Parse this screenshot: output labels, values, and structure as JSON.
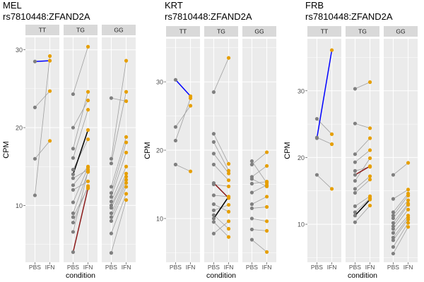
{
  "colors": {
    "panel_bg": "#ebebeb",
    "strip_bg": "#d9d9d9",
    "grid": "#ffffff",
    "pbs_point": "#808080",
    "ifn_point": "#e69f00",
    "line_default": "#a0a0a0",
    "highlight_blue": "#0000ff",
    "highlight_red": "#8b1a1a",
    "highlight_black": "#000000"
  },
  "chart_data": [
    {
      "type": "scatter",
      "title_line1": "MEL",
      "title_line2": "rs7810448:ZFAND2A",
      "ylabel": "CPM",
      "xlabel": "condition",
      "conditions": [
        "PBS",
        "IFN"
      ],
      "yticks": [
        10,
        20,
        30
      ],
      "ylim": [
        2.7,
        31.6
      ],
      "facets": [
        {
          "genotype": "TT",
          "pairs": [
            [
              28.5,
              28.6,
              "blue"
            ],
            [
              22.6,
              24.7
            ],
            [
              16.0,
              18.3
            ],
            [
              11.3,
              29.2
            ]
          ]
        },
        {
          "genotype": "TG",
          "pairs": [
            [
              24.3,
              30.4
            ],
            [
              20.0,
              23.5
            ],
            [
              17.3,
              24.6
            ],
            [
              16.1,
              22.3
            ],
            [
              14.6,
              18.5
            ],
            [
              14.0,
              19.7,
              "black"
            ],
            [
              13.5,
              14.6
            ],
            [
              12.6,
              15.0
            ],
            [
              12.0,
              13.1
            ],
            [
              10.4,
              14.9
            ],
            [
              9.0,
              14.3
            ],
            [
              8.5,
              12.3
            ],
            [
              7.8,
              12.5
            ],
            [
              6.6,
              14.4
            ],
            [
              4.0,
              12.2,
              "red"
            ]
          ]
        },
        {
          "genotype": "GG",
          "pairs": [
            [
              23.8,
              23.4
            ],
            [
              16.0,
              28.6
            ],
            [
              15.4,
              24.6
            ],
            [
              12.4,
              18.8
            ],
            [
              11.6,
              18.1
            ],
            [
              11.1,
              16.8
            ],
            [
              10.5,
              15.0
            ],
            [
              10.0,
              14.1
            ],
            [
              9.7,
              13.7
            ],
            [
              9.0,
              13.3
            ],
            [
              8.5,
              12.9
            ],
            [
              8.0,
              12.4
            ],
            [
              6.4,
              11.5
            ],
            [
              3.9,
              10.7
            ]
          ]
        }
      ]
    },
    {
      "type": "scatter",
      "title_line1": "KRT",
      "title_line2": "rs7810448:ZFAND2A",
      "ylabel": "CPM",
      "xlabel": "condition",
      "conditions": [
        "PBS",
        "IFN"
      ],
      "yticks": [
        10,
        20,
        30
      ],
      "ylim": [
        3.6,
        36.3
      ],
      "facets": [
        {
          "genotype": "TT",
          "pairs": [
            [
              30.3,
              27.9,
              "blue"
            ],
            [
              23.4,
              26.5
            ],
            [
              21.4,
              27.6
            ],
            [
              17.9,
              16.9
            ]
          ]
        },
        {
          "genotype": "TG",
          "pairs": [
            [
              28.5,
              33.5
            ],
            [
              22.4,
              18.0
            ],
            [
              21.2,
              17.0
            ],
            [
              19.5,
              16.6
            ],
            [
              17.9,
              15.6
            ],
            [
              15.2,
              13.0,
              "red"
            ],
            [
              15.0,
              14.7
            ],
            [
              13.4,
              13.2
            ],
            [
              12.1,
              11.0
            ],
            [
              11.2,
              12.0
            ],
            [
              10.5,
              8.5
            ],
            [
              10.0,
              13.2,
              "black"
            ],
            [
              9.5,
              7.3
            ],
            [
              7.8,
              9.6
            ]
          ]
        },
        {
          "genotype": "GG",
          "pairs": [
            [
              18.4,
              15.2
            ],
            [
              17.9,
              19.7
            ],
            [
              16.1,
              17.7
            ],
            [
              15.8,
              14.7
            ],
            [
              15.1,
              15.4
            ],
            [
              13.8,
              14.9
            ],
            [
              12.1,
              13.2
            ],
            [
              11.5,
              11.7
            ],
            [
              10.0,
              9.6
            ],
            [
              8.4,
              8.2
            ],
            [
              6.9,
              5.1
            ]
          ]
        }
      ]
    },
    {
      "type": "scatter",
      "title_line1": "FRB",
      "title_line2": "rs7810448:ZFAND2A",
      "ylabel": "CPM",
      "xlabel": "condition",
      "conditions": [
        "PBS",
        "IFN"
      ],
      "yticks": [
        10,
        20,
        30
      ],
      "ylim": [
        4.3,
        37.8
      ],
      "facets": [
        {
          "genotype": "TT",
          "pairs": [
            [
              25.8,
              23.5
            ],
            [
              23.0,
              22.0
            ],
            [
              22.9,
              36.1,
              "blue"
            ],
            [
              17.4,
              15.3
            ]
          ]
        },
        {
          "genotype": "TG",
          "pairs": [
            [
              30.3,
              31.3
            ],
            [
              25.1,
              24.4
            ],
            [
              20.5,
              22.9
            ],
            [
              19.3,
              21.1
            ],
            [
              18.0,
              18.6
            ],
            [
              17.4,
              18.7,
              "red"
            ],
            [
              16.5,
              19.9
            ],
            [
              15.3,
              17.2
            ],
            [
              14.7,
              16.7
            ],
            [
              12.7,
              14.2
            ],
            [
              11.8,
              13.9
            ],
            [
              11.3,
              13.7,
              "black"
            ],
            [
              10.3,
              12.8
            ]
          ]
        },
        {
          "genotype": "GG",
          "pairs": [
            [
              17.4,
              19.2
            ],
            [
              13.8,
              15.2
            ],
            [
              11.8,
              14.6
            ],
            [
              11.3,
              14.3
            ],
            [
              10.9,
              13.6
            ],
            [
              10.2,
              13.1
            ],
            [
              9.7,
              12.9
            ],
            [
              9.3,
              12.2
            ],
            [
              8.7,
              11.3
            ],
            [
              8.0,
              11.0
            ],
            [
              7.6,
              10.7
            ],
            [
              6.6,
              10.2
            ],
            [
              5.6,
              9.6
            ]
          ]
        }
      ]
    }
  ]
}
